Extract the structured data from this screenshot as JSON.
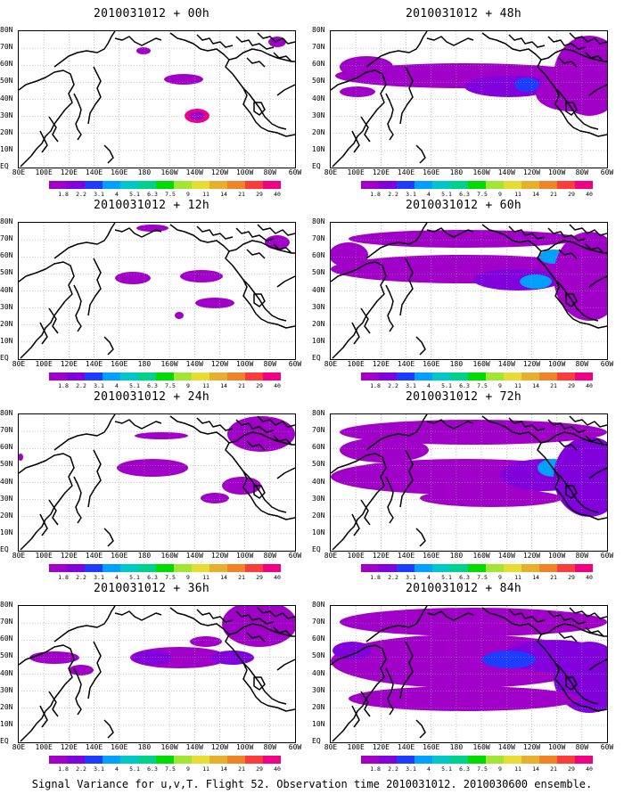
{
  "caption": "Signal Variance for u,v,T. Flight 52. Observation time 2010031012. 2010030600 ensemble.",
  "lat_labels": [
    "80N",
    "70N",
    "60N",
    "50N",
    "40N",
    "30N",
    "20N",
    "10N",
    "EQ"
  ],
  "lon_labels": [
    "80E",
    "100E",
    "120E",
    "140E",
    "160E",
    "180",
    "160W",
    "140W",
    "120W",
    "100W",
    "80W",
    "60W"
  ],
  "colorbar": {
    "labels": [
      "1.8",
      "2.2",
      "3.1",
      "4",
      "5.1",
      "6.3",
      "7.5",
      "9",
      "11",
      "14",
      "21",
      "29",
      "40"
    ],
    "colors": [
      "#a000c8",
      "#8200dc",
      "#1e3cff",
      "#00a0ff",
      "#00c8c8",
      "#00d28c",
      "#00dc00",
      "#a0e632",
      "#e6dc32",
      "#e6af2d",
      "#f08228",
      "#fa3c3c",
      "#f00082"
    ]
  },
  "panels": [
    {
      "title": "2010031012 + 00h",
      "level": 0
    },
    {
      "title": "2010031012 + 12h",
      "level": 1
    },
    {
      "title": "2010031012 + 24h",
      "level": 2
    },
    {
      "title": "2010031012 + 36h",
      "level": 3
    },
    {
      "title": "2010031012 + 48h",
      "level": 4
    },
    {
      "title": "2010031012 + 60h",
      "level": 5
    },
    {
      "title": "2010031012 + 72h",
      "level": 6
    },
    {
      "title": "2010031012 + 84h",
      "level": 7
    }
  ]
}
